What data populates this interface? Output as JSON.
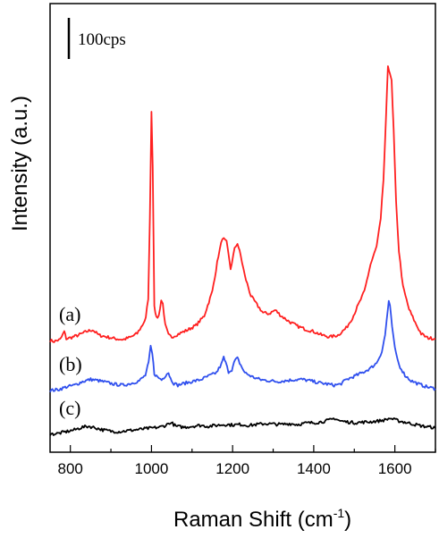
{
  "chart_data": {
    "type": "line",
    "xlabel": "Raman Shift (cm",
    "xlabel_sup": "-1",
    "xlabel_close": ")",
    "ylabel": "Intensity (a.u.)",
    "xlim": [
      750,
      1700
    ],
    "x_ticks": [
      800,
      1000,
      1200,
      1400,
      1600
    ],
    "x_tick_labels": [
      "800",
      "1000",
      "1200",
      "1400",
      "1600"
    ],
    "y_ticks_shown": false,
    "scale_bar": {
      "label": "100cps",
      "value": 100
    },
    "series": [
      {
        "name": "(a)",
        "color": "#ff2020",
        "points": [
          [
            750,
            250
          ],
          [
            760,
            248
          ],
          [
            775,
            252
          ],
          [
            785,
            270
          ],
          [
            790,
            254
          ],
          [
            800,
            256
          ],
          [
            820,
            262
          ],
          [
            840,
            270
          ],
          [
            855,
            274
          ],
          [
            870,
            262
          ],
          [
            890,
            258
          ],
          [
            910,
            254
          ],
          [
            930,
            252
          ],
          [
            950,
            258
          ],
          [
            965,
            266
          ],
          [
            978,
            285
          ],
          [
            986,
            300
          ],
          [
            992,
            345
          ],
          [
            996,
            520
          ],
          [
            1000,
            765
          ],
          [
            1003,
            640
          ],
          [
            1007,
            330
          ],
          [
            1012,
            300
          ],
          [
            1018,
            305
          ],
          [
            1024,
            340
          ],
          [
            1028,
            332
          ],
          [
            1034,
            284
          ],
          [
            1042,
            262
          ],
          [
            1050,
            258
          ],
          [
            1060,
            262
          ],
          [
            1075,
            268
          ],
          [
            1090,
            274
          ],
          [
            1110,
            284
          ],
          [
            1130,
            305
          ],
          [
            1150,
            360
          ],
          [
            1165,
            440
          ],
          [
            1175,
            480
          ],
          [
            1185,
            470
          ],
          [
            1195,
            410
          ],
          [
            1205,
            455
          ],
          [
            1212,
            468
          ],
          [
            1220,
            440
          ],
          [
            1230,
            395
          ],
          [
            1245,
            350
          ],
          [
            1260,
            330
          ],
          [
            1275,
            312
          ],
          [
            1290,
            310
          ],
          [
            1305,
            318
          ],
          [
            1320,
            305
          ],
          [
            1340,
            292
          ],
          [
            1360,
            282
          ],
          [
            1380,
            275
          ],
          [
            1400,
            270
          ],
          [
            1420,
            262
          ],
          [
            1440,
            258
          ],
          [
            1460,
            262
          ],
          [
            1480,
            278
          ],
          [
            1495,
            300
          ],
          [
            1510,
            330
          ],
          [
            1525,
            360
          ],
          [
            1540,
            420
          ],
          [
            1555,
            460
          ],
          [
            1565,
            520
          ],
          [
            1572,
            610
          ],
          [
            1578,
            745
          ],
          [
            1583,
            865
          ],
          [
            1588,
            848
          ],
          [
            1592,
            830
          ],
          [
            1597,
            720
          ],
          [
            1603,
            560
          ],
          [
            1610,
            450
          ],
          [
            1620,
            370
          ],
          [
            1635,
            320
          ],
          [
            1650,
            290
          ],
          [
            1665,
            265
          ],
          [
            1680,
            256
          ],
          [
            1700,
            254
          ]
        ]
      },
      {
        "name": "(b)",
        "color": "#3050ee",
        "points": [
          [
            750,
            138
          ],
          [
            770,
            140
          ],
          [
            790,
            146
          ],
          [
            810,
            150
          ],
          [
            830,
            158
          ],
          [
            850,
            163
          ],
          [
            870,
            160
          ],
          [
            890,
            156
          ],
          [
            910,
            152
          ],
          [
            930,
            150
          ],
          [
            950,
            154
          ],
          [
            970,
            160
          ],
          [
            985,
            172
          ],
          [
            993,
            200
          ],
          [
            998,
            237
          ],
          [
            1002,
            220
          ],
          [
            1007,
            176
          ],
          [
            1015,
            168
          ],
          [
            1025,
            162
          ],
          [
            1033,
            170
          ],
          [
            1038,
            176
          ],
          [
            1042,
            178
          ],
          [
            1047,
            165
          ],
          [
            1055,
            154
          ],
          [
            1065,
            150
          ],
          [
            1080,
            154
          ],
          [
            1100,
            158
          ],
          [
            1120,
            162
          ],
          [
            1140,
            170
          ],
          [
            1160,
            178
          ],
          [
            1172,
            196
          ],
          [
            1178,
            212
          ],
          [
            1183,
            200
          ],
          [
            1190,
            180
          ],
          [
            1198,
            185
          ],
          [
            1206,
            206
          ],
          [
            1212,
            210
          ],
          [
            1220,
            195
          ],
          [
            1230,
            178
          ],
          [
            1250,
            168
          ],
          [
            1270,
            162
          ],
          [
            1290,
            160
          ],
          [
            1310,
            158
          ],
          [
            1330,
            160
          ],
          [
            1350,
            162
          ],
          [
            1370,
            163
          ],
          [
            1390,
            160
          ],
          [
            1410,
            156
          ],
          [
            1430,
            153
          ],
          [
            1450,
            150
          ],
          [
            1465,
            152
          ],
          [
            1480,
            162
          ],
          [
            1500,
            170
          ],
          [
            1520,
            178
          ],
          [
            1540,
            188
          ],
          [
            1555,
            200
          ],
          [
            1568,
            225
          ],
          [
            1576,
            262
          ],
          [
            1580,
            298
          ],
          [
            1585,
            338
          ],
          [
            1588,
            326
          ],
          [
            1593,
            282
          ],
          [
            1600,
            232
          ],
          [
            1610,
            196
          ],
          [
            1625,
            172
          ],
          [
            1640,
            160
          ],
          [
            1660,
            152
          ],
          [
            1680,
            146
          ],
          [
            1700,
            142
          ]
        ]
      },
      {
        "name": "(c)",
        "color": "#000000",
        "points": [
          [
            750,
            40
          ],
          [
            770,
            42
          ],
          [
            790,
            46
          ],
          [
            810,
            50
          ],
          [
            830,
            56
          ],
          [
            845,
            58
          ],
          [
            860,
            55
          ],
          [
            880,
            50
          ],
          [
            900,
            47
          ],
          [
            920,
            46
          ],
          [
            940,
            48
          ],
          [
            960,
            50
          ],
          [
            980,
            52
          ],
          [
            1000,
            54
          ],
          [
            1020,
            56
          ],
          [
            1035,
            60
          ],
          [
            1045,
            66
          ],
          [
            1052,
            64
          ],
          [
            1060,
            58
          ],
          [
            1080,
            56
          ],
          [
            1100,
            58
          ],
          [
            1120,
            60
          ],
          [
            1140,
            58
          ],
          [
            1160,
            60
          ],
          [
            1180,
            62
          ],
          [
            1200,
            61
          ],
          [
            1220,
            62
          ],
          [
            1240,
            60
          ],
          [
            1260,
            62
          ],
          [
            1280,
            64
          ],
          [
            1300,
            63
          ],
          [
            1320,
            62
          ],
          [
            1340,
            64
          ],
          [
            1360,
            62
          ],
          [
            1380,
            65
          ],
          [
            1400,
            66
          ],
          [
            1420,
            68
          ],
          [
            1440,
            72
          ],
          [
            1452,
            76
          ],
          [
            1465,
            70
          ],
          [
            1480,
            68
          ],
          [
            1500,
            66
          ],
          [
            1520,
            67
          ],
          [
            1540,
            68
          ],
          [
            1560,
            70
          ],
          [
            1575,
            72
          ],
          [
            1588,
            76
          ],
          [
            1598,
            73
          ],
          [
            1610,
            70
          ],
          [
            1630,
            66
          ],
          [
            1650,
            62
          ],
          [
            1670,
            58
          ],
          [
            1690,
            56
          ],
          [
            1700,
            54
          ]
        ]
      }
    ]
  }
}
